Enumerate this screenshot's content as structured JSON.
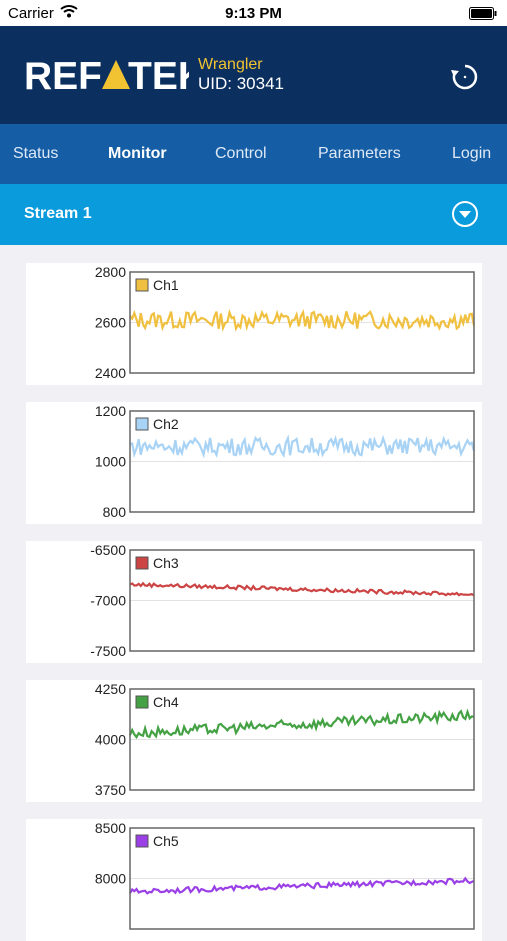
{
  "status_bar": {
    "carrier": "Carrier",
    "time": "9:13 PM"
  },
  "header": {
    "logo_text": "REFTEK",
    "device_name": "Wrangler",
    "device_uid": "UID: 30341"
  },
  "nav": {
    "tabs": [
      {
        "label": "Status",
        "active": false
      },
      {
        "label": "Monitor",
        "active": true
      },
      {
        "label": "Control",
        "active": false
      },
      {
        "label": "Parameters",
        "active": false
      },
      {
        "label": "Login",
        "active": false
      }
    ]
  },
  "stream": {
    "title": "Stream 1"
  },
  "colors": {
    "header": "#0b2f5e",
    "nav": "#155ea6",
    "stream_bar": "#0a9bdc"
  },
  "chart_data": [
    {
      "type": "line",
      "series": [
        {
          "name": "Ch1",
          "color": "#f0c040",
          "baseline": 2610,
          "noise": 35,
          "drift": 0,
          "length": 100
        }
      ],
      "yticks": [
        "2800",
        "2600",
        "2400"
      ],
      "ylim": [
        2400,
        2800
      ]
    },
    {
      "type": "line",
      "series": [
        {
          "name": "Ch2",
          "color": "#a9d3f5",
          "baseline": 1060,
          "noise": 35,
          "drift": 0,
          "length": 100
        }
      ],
      "yticks": [
        "1200",
        "1000",
        "800"
      ],
      "ylim": [
        800,
        1200
      ]
    },
    {
      "type": "line",
      "series": [
        {
          "name": "Ch3",
          "color": "#cc4444",
          "baseline": -6840,
          "noise": 18,
          "drift": -100,
          "length": 100
        }
      ],
      "yticks": [
        "-6500",
        "-7000",
        "-7500"
      ],
      "ylim": [
        -7500,
        -6500
      ]
    },
    {
      "type": "line",
      "series": [
        {
          "name": "Ch4",
          "color": "#44a244",
          "baseline": 4030,
          "noise": 25,
          "drift": 90,
          "length": 100
        }
      ],
      "yticks": [
        "4250",
        "4000",
        "3750"
      ],
      "ylim": [
        3750,
        4250
      ]
    },
    {
      "type": "line",
      "series": [
        {
          "name": "Ch5",
          "color": "#9a40e6",
          "baseline": 7870,
          "noise": 25,
          "drift": 110,
          "length": 100
        }
      ],
      "yticks": [
        "8500",
        "8000"
      ],
      "ylim": [
        7500,
        8500
      ]
    }
  ]
}
